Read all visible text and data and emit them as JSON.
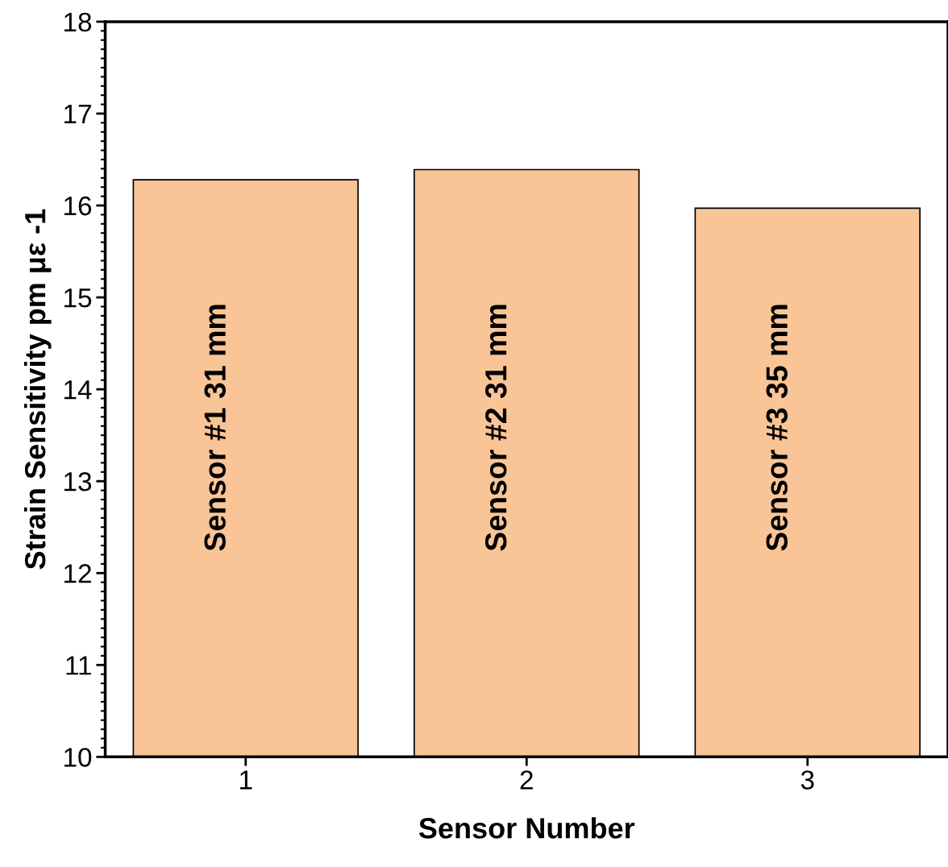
{
  "chart_data": {
    "type": "bar",
    "xlabel": "Sensor Number",
    "ylabel": "Strain Sensitivity pm με -1",
    "categories": [
      "1",
      "2",
      "3"
    ],
    "values": [
      16.28,
      16.39,
      15.97
    ],
    "color": "#f9c597",
    "ylim": [
      10,
      18
    ],
    "yticks": [
      10,
      11,
      12,
      13,
      14,
      15,
      16,
      17,
      18
    ],
    "grid": false,
    "annotations": [
      "Sensor #1 31 mm",
      "Sensor #2 31 mm",
      "Sensor #3 35 mm"
    ]
  }
}
